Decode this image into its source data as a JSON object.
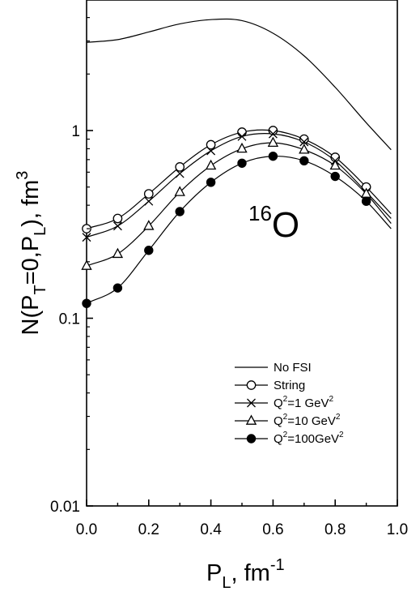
{
  "chart_data": {
    "type": "line",
    "yscale": "log",
    "xlim": [
      0.0,
      1.0
    ],
    "ylim": [
      0.01,
      5
    ],
    "x_ticks": [
      0.0,
      0.2,
      0.4,
      0.6,
      0.8,
      1.0
    ],
    "x_tick_labels": [
      "0.0",
      "0.2",
      "0.4",
      "0.6",
      "0.8",
      "1.0"
    ],
    "y_ticks": [
      0.01,
      0.1,
      1
    ],
    "y_tick_labels": [
      "0.01",
      "0.1",
      "1"
    ],
    "xlabel": {
      "main": "P",
      "sub": "L",
      "rest": ", fm",
      "sup": "-1"
    },
    "ylabel": {
      "a": "N(P",
      "sub1": "T",
      "b": "=0,P",
      "sub2": "L",
      "c": "), fm",
      "sup": "3"
    },
    "annotation": {
      "sup": "16",
      "text": "O"
    },
    "series": [
      {
        "name": "No FSI",
        "marker": "none",
        "x": [
          0.0,
          0.1,
          0.2,
          0.3,
          0.4,
          0.5,
          0.6,
          0.7,
          0.8,
          0.9,
          0.98
        ],
        "y": [
          2.95,
          3.05,
          3.35,
          3.7,
          3.9,
          3.85,
          3.3,
          2.5,
          1.7,
          1.1,
          0.79
        ]
      },
      {
        "name": "String",
        "marker": "open-circle",
        "x": [
          0.0,
          0.1,
          0.2,
          0.3,
          0.4,
          0.5,
          0.6,
          0.7,
          0.8,
          0.9,
          0.98
        ],
        "y": [
          0.3,
          0.34,
          0.46,
          0.64,
          0.84,
          0.98,
          1.0,
          0.9,
          0.72,
          0.5,
          0.36
        ],
        "marker_x": [
          0.0,
          0.1,
          0.2,
          0.3,
          0.4,
          0.5,
          0.6,
          0.7,
          0.8,
          0.9
        ]
      },
      {
        "name": "Q2=1 GeV2",
        "label_parts": {
          "a": "Q",
          "sup1": "2",
          "b": "=1  GeV",
          "sup2": "2"
        },
        "marker": "cross",
        "x": [
          0.0,
          0.1,
          0.2,
          0.3,
          0.4,
          0.5,
          0.6,
          0.7,
          0.8,
          0.9,
          0.98
        ],
        "y": [
          0.27,
          0.31,
          0.42,
          0.59,
          0.78,
          0.93,
          0.96,
          0.87,
          0.69,
          0.47,
          0.34
        ],
        "marker_x": [
          0.0,
          0.1,
          0.2,
          0.3,
          0.4,
          0.5,
          0.6,
          0.7,
          0.8,
          0.9
        ]
      },
      {
        "name": "Q2=10 GeV2",
        "label_parts": {
          "a": "Q",
          "sup1": "2",
          "b": "=10 GeV",
          "sup2": "2"
        },
        "marker": "open-triangle",
        "x": [
          0.0,
          0.1,
          0.2,
          0.3,
          0.4,
          0.5,
          0.6,
          0.7,
          0.8,
          0.9,
          0.98
        ],
        "y": [
          0.19,
          0.22,
          0.31,
          0.47,
          0.65,
          0.8,
          0.86,
          0.79,
          0.65,
          0.46,
          0.32
        ],
        "marker_x": [
          0.0,
          0.1,
          0.2,
          0.3,
          0.4,
          0.5,
          0.6,
          0.7,
          0.8,
          0.9
        ]
      },
      {
        "name": "Q2=100GeV2",
        "label_parts": {
          "a": "Q",
          "sup1": "2",
          "b": "=100GeV",
          "sup2": "2"
        },
        "marker": "filled-circle",
        "x": [
          0.0,
          0.1,
          0.2,
          0.3,
          0.4,
          0.5,
          0.6,
          0.7,
          0.8,
          0.9,
          0.98
        ],
        "y": [
          0.12,
          0.145,
          0.23,
          0.37,
          0.53,
          0.67,
          0.73,
          0.69,
          0.57,
          0.42,
          0.3
        ],
        "marker_x": [
          0.0,
          0.1,
          0.2,
          0.3,
          0.4,
          0.5,
          0.6,
          0.7,
          0.8,
          0.9
        ]
      }
    ],
    "legend": {
      "position": "right-center"
    }
  }
}
